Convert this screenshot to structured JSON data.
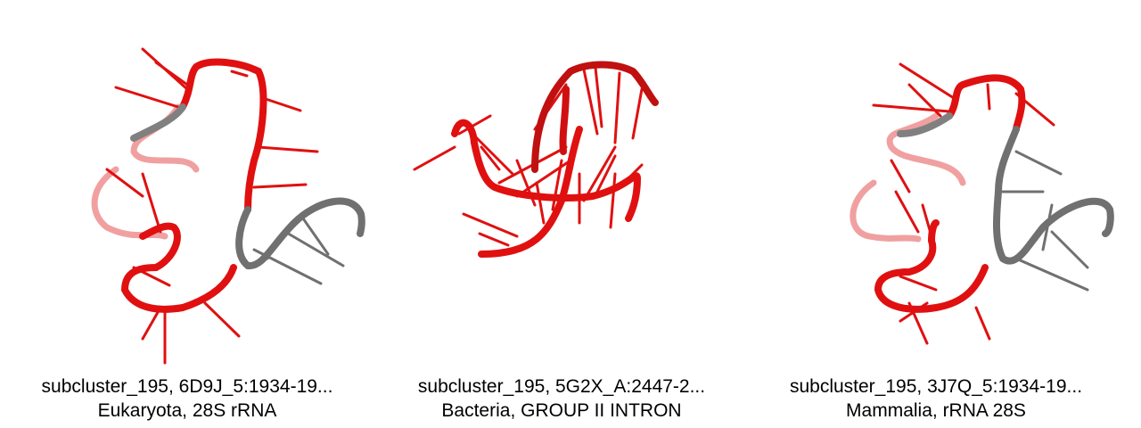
{
  "panels": [
    {
      "line1": "subcluster_195, 6D9J_5:1934-19...",
      "line2": "Eukaryota, 28S rRNA",
      "colors": {
        "highlight": "#e01010",
        "other": "#707070"
      }
    },
    {
      "line1": "subcluster_195, 5G2X_A:2447-2...",
      "line2": "Bacteria, GROUP II INTRON",
      "colors": {
        "highlight": "#e01010",
        "other": "#707070"
      }
    },
    {
      "line1": "subcluster_195, 3J7Q_5:1934-19...",
      "line2": "Mammalia, rRNA 28S",
      "colors": {
        "highlight": "#e01010",
        "other": "#707070"
      }
    }
  ]
}
